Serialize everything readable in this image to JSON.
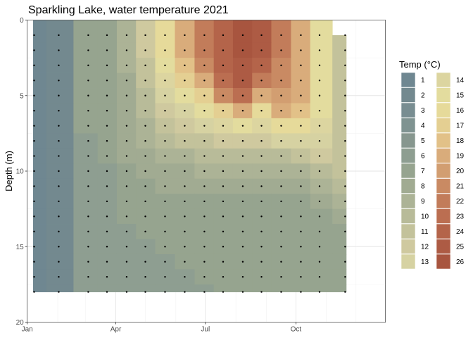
{
  "chart_data": {
    "type": "heatmap",
    "subtype": "filled-contour",
    "title": "Sparkling Lake, water temperature 2021",
    "xlabel": "",
    "ylabel": "Depth (m)",
    "x_axis": {
      "type": "date",
      "ticks": [
        "Jan",
        "Apr",
        "Jul",
        "Oct"
      ],
      "range": [
        "2021-01-01",
        "2021-12-31"
      ]
    },
    "y_axis": {
      "reversed": true,
      "ticks": [
        0,
        5,
        10,
        15,
        20
      ],
      "range": [
        0,
        20
      ]
    },
    "grid": true,
    "legend": {
      "title": "Temp (°C)",
      "placement": "right",
      "entries": [
        1,
        2,
        3,
        4,
        5,
        6,
        7,
        8,
        9,
        10,
        11,
        12,
        13,
        14,
        15,
        16,
        17,
        18,
        19,
        20,
        21,
        22,
        23,
        24,
        25,
        26
      ],
      "colors": [
        "#6f8791",
        "#73898f",
        "#788d91",
        "#7f9391",
        "#87978f",
        "#8e9e91",
        "#96a48f",
        "#a1ab92",
        "#acb396",
        "#b8bb99",
        "#c3c29b",
        "#cfc99f",
        "#d6d2a2",
        "#dcd5a0",
        "#e3dc9e",
        "#e6da9a",
        "#e4cf92",
        "#e2c188",
        "#d9ac7b",
        "#d29e71",
        "#c98a63",
        "#c27c5a",
        "#bb6e51",
        "#b4644a",
        "#ad5b44",
        "#a8553f"
      ]
    },
    "sample_dates": [
      "2021-01-08",
      "2021-02-02",
      "2021-03-04",
      "2021-03-23",
      "2021-04-12",
      "2021-05-01",
      "2021-05-21",
      "2021-06-10",
      "2021-06-30",
      "2021-07-19",
      "2021-08-08",
      "2021-08-27",
      "2021-09-16",
      "2021-10-06",
      "2021-10-25",
      "2021-11-20"
    ],
    "sample_depths": [
      1,
      2,
      3,
      4,
      5,
      6,
      7,
      8,
      9,
      10,
      11,
      12,
      13,
      14,
      15,
      16,
      17,
      18
    ],
    "temperature_grid": [
      [
        1,
        2,
        7,
        7,
        9,
        12,
        16,
        19,
        22,
        24,
        26,
        25,
        22,
        19,
        15,
        11
      ],
      [
        1,
        2,
        7,
        7,
        9,
        12,
        16,
        19,
        22,
        24,
        26,
        25,
        22,
        19,
        15,
        11
      ],
      [
        1,
        2,
        7,
        7,
        9,
        11,
        15,
        18,
        21,
        24,
        25,
        24,
        21,
        19,
        15,
        11
      ],
      [
        1,
        2,
        7,
        7,
        8,
        11,
        14,
        17,
        19,
        23,
        25,
        22,
        21,
        19,
        15,
        11
      ],
      [
        1,
        2,
        7,
        7,
        8,
        10,
        13,
        15,
        17,
        21,
        23,
        19,
        20,
        19,
        15,
        11
      ],
      [
        1,
        2,
        7,
        7,
        8,
        10,
        12,
        13,
        15,
        17,
        19,
        16,
        19,
        18,
        15,
        11
      ],
      [
        1,
        2,
        7,
        7,
        8,
        9,
        11,
        12,
        13,
        14,
        15,
        14,
        16,
        16,
        14,
        11
      ],
      [
        1,
        2,
        6,
        7,
        8,
        9,
        10,
        11,
        11,
        12,
        12,
        12,
        13,
        13,
        13,
        11
      ],
      [
        1,
        2,
        6,
        7,
        8,
        8,
        9,
        9,
        10,
        10,
        10,
        10,
        10,
        11,
        12,
        11
      ],
      [
        1,
        2,
        6,
        6,
        7,
        8,
        8,
        8,
        9,
        9,
        9,
        9,
        9,
        9,
        10,
        11
      ],
      [
        1,
        2,
        6,
        6,
        7,
        7,
        8,
        8,
        8,
        8,
        8,
        8,
        8,
        8,
        9,
        10
      ],
      [
        1,
        2,
        6,
        6,
        7,
        7,
        7,
        7,
        7,
        7,
        7,
        7,
        7,
        7,
        8,
        9
      ],
      [
        1,
        2,
        6,
        6,
        7,
        7,
        7,
        7,
        7,
        7,
        7,
        7,
        7,
        7,
        7,
        8
      ],
      [
        1,
        2,
        6,
        6,
        6,
        7,
        7,
        7,
        7,
        7,
        7,
        7,
        7,
        7,
        7,
        7
      ],
      [
        1,
        2,
        6,
        6,
        6,
        6,
        7,
        7,
        7,
        7,
        7,
        7,
        7,
        7,
        7,
        7
      ],
      [
        1,
        2,
        6,
        6,
        6,
        6,
        6,
        7,
        7,
        7,
        7,
        7,
        7,
        7,
        7,
        7
      ],
      [
        1,
        2,
        6,
        6,
        6,
        6,
        6,
        6,
        7,
        7,
        7,
        7,
        7,
        7,
        7,
        7
      ],
      [
        1,
        2,
        6,
        6,
        6,
        6,
        6,
        6,
        6,
        7,
        7,
        7,
        7,
        7,
        7,
        7
      ]
    ]
  }
}
